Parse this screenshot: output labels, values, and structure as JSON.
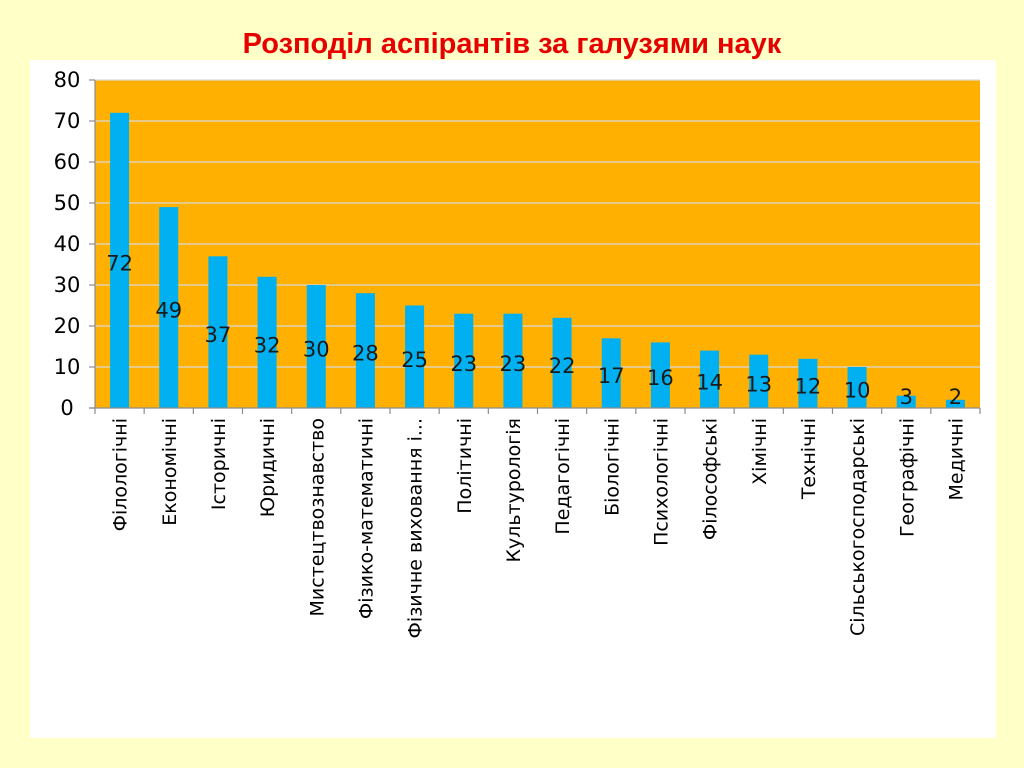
{
  "slide": {
    "title": "Розподіл аспірантів за галузями наук"
  },
  "colors": {
    "page_background": "#FFFFC8",
    "title": "#E60000",
    "plot_background": "#FFB000",
    "bar": "#00B0F0",
    "gridline": "#D9D9D9"
  },
  "chart_data": {
    "type": "bar",
    "title": "",
    "xlabel": "",
    "ylabel": "",
    "ylim": [
      0,
      80
    ],
    "yticks": [
      0,
      10,
      20,
      30,
      40,
      50,
      60,
      70,
      80
    ],
    "grid": true,
    "legend": "none",
    "categories": [
      "Філологічні",
      "Економічні",
      "Історичні",
      "Юридичні",
      "Мистецтвознавство",
      "Фізико-математичні",
      "Фізичне виховання і...",
      "Політичні",
      "Культурологія",
      "Педагогічні",
      "Біологічні",
      "Психологічні",
      "Філософські",
      "Хімічні",
      "Технічні",
      "Сільськогосподарські",
      "Географічні",
      "Медичні"
    ],
    "values": [
      72,
      49,
      37,
      32,
      30,
      28,
      25,
      23,
      23,
      22,
      17,
      16,
      14,
      13,
      12,
      10,
      3,
      2
    ],
    "data_labels": [
      "72",
      "49",
      "37",
      "32",
      "30",
      "28",
      "25",
      "23",
      "23",
      "22",
      "17",
      "16",
      "14",
      "13",
      "12",
      "10",
      "3",
      "2"
    ]
  }
}
